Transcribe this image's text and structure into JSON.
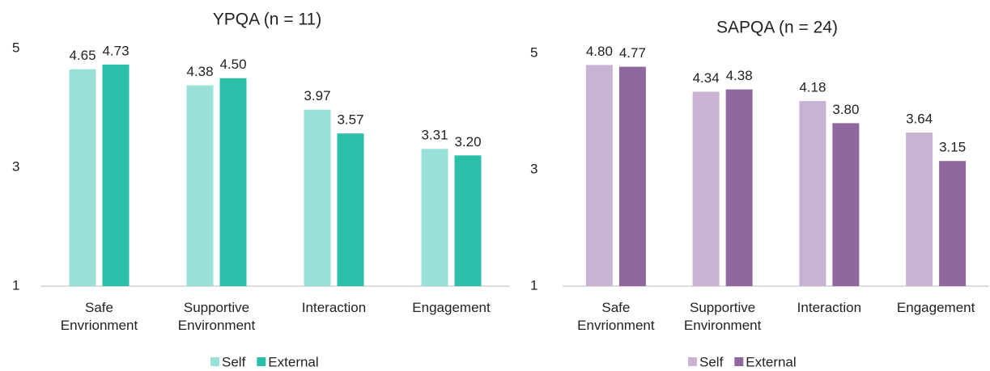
{
  "chart_data": [
    {
      "type": "bar",
      "title": "YPQA (n = 11)",
      "categories": [
        "Safe Envrionment",
        "Supportive Environment",
        "Interaction",
        "Engagement"
      ],
      "series": [
        {
          "name": "Self",
          "color": "#99e0d6",
          "values": [
            4.65,
            4.38,
            3.97,
            3.31
          ],
          "value_labels": [
            "4.65",
            "4.38",
            "3.97",
            "3.31"
          ]
        },
        {
          "name": "External",
          "color": "#2bbfa9",
          "values": [
            4.73,
            4.5,
            3.57,
            3.2
          ],
          "value_labels": [
            "4.73",
            "4.50",
            "3.57",
            "3.20"
          ]
        }
      ],
      "ylim": [
        1,
        5
      ],
      "yticks": [
        1,
        3,
        5
      ],
      "grid": false,
      "legend": "bottom"
    },
    {
      "type": "bar",
      "title": "SAPQA (n = 24)",
      "categories": [
        "Safe Envrionment",
        "Supportive Environment",
        "Interaction",
        "Engagement"
      ],
      "series": [
        {
          "name": "Self",
          "color": "#c9b3d3",
          "values": [
            4.8,
            4.34,
            4.18,
            3.64
          ],
          "value_labels": [
            "4.80",
            "4.34",
            "4.18",
            "3.64"
          ]
        },
        {
          "name": "External",
          "color": "#8f68a0",
          "values": [
            4.77,
            4.38,
            3.8,
            3.15
          ],
          "value_labels": [
            "4.77",
            "4.38",
            "3.80",
            "3.15"
          ]
        }
      ],
      "ylim": [
        1,
        5
      ],
      "yticks": [
        1,
        3,
        5
      ],
      "grid": false,
      "legend": "bottom"
    }
  ]
}
